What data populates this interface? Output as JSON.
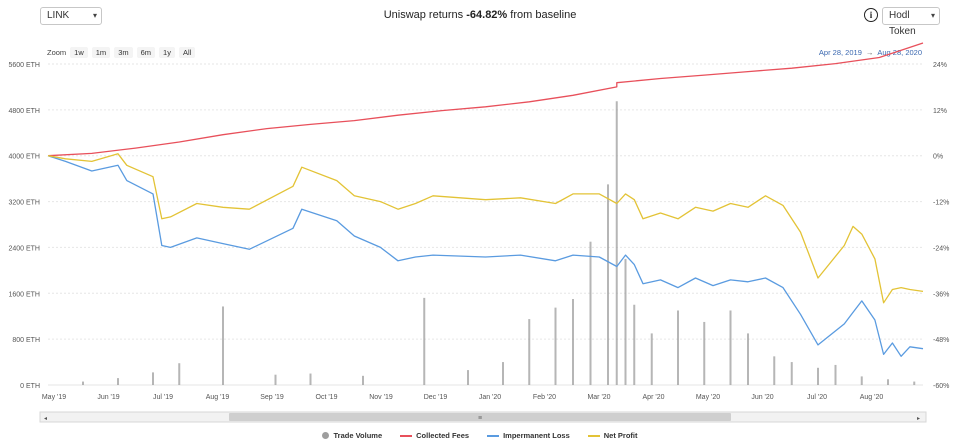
{
  "toolbar": {
    "token_value": "LINK",
    "mode_value": "Hodl Token",
    "headline_prefix": "Uniswap returns ",
    "headline_value": "-64.82%",
    "headline_suffix": " from baseline",
    "info_icon": "info-circle-icon"
  },
  "zoom": {
    "label": "Zoom",
    "buttons": [
      "1w",
      "1m",
      "3m",
      "6m",
      "1y",
      "All"
    ]
  },
  "range": {
    "from": "Apr 28, 2019",
    "arrow": "→",
    "to": "Aug 28, 2020"
  },
  "legend": [
    {
      "label": "Trade Volume",
      "color": "#9e9e9e",
      "symbol": "dot"
    },
    {
      "label": "Collected Fees",
      "color": "#e8505b",
      "symbol": "line"
    },
    {
      "label": "Impermanent Loss",
      "color": "#5a9be0",
      "symbol": "line"
    },
    {
      "label": "Net Profit",
      "color": "#e3c336",
      "symbol": "line"
    }
  ],
  "chart_data": {
    "type": "line",
    "x_ticks": [
      "May '19",
      "Jun '19",
      "Jul '19",
      "Aug '19",
      "Sep '19",
      "Oct '19",
      "Nov '19",
      "Dec '19",
      "Jan '20",
      "Feb '20",
      "Mar '20",
      "Apr '20",
      "May '20",
      "Jun '20",
      "Jul '20",
      "Aug '20"
    ],
    "y_left_ticks": [
      "0 ETH",
      "800 ETH",
      "1600 ETH",
      "2400 ETH",
      "3200 ETH",
      "4000 ETH",
      "4800 ETH",
      "5600 ETH"
    ],
    "y_left_range": [
      0,
      5600
    ],
    "y_right_ticks": [
      "-60%",
      "-48%",
      "-36%",
      "-24%",
      "-12%",
      "0%",
      "12%",
      "24%"
    ],
    "y_right_range": [
      -60,
      24
    ],
    "grid": true,
    "series": [
      {
        "name": "Collected Fees",
        "color": "#e8505b",
        "x": [
          0,
          0.05,
          0.1,
          0.15,
          0.2,
          0.25,
          0.3,
          0.35,
          0.4,
          0.45,
          0.5,
          0.55,
          0.6,
          0.65,
          0.65,
          0.7,
          0.75,
          0.8,
          0.85,
          0.9,
          0.95,
          1.0
        ],
        "pct": [
          0,
          0.6,
          2.0,
          3.6,
          5.5,
          7.1,
          8.2,
          9.2,
          10.6,
          11.8,
          12.8,
          14.1,
          15.8,
          18.0,
          19.1,
          20.2,
          21.1,
          22.0,
          22.9,
          24.1,
          25.7,
          29.5
        ]
      },
      {
        "name": "Impermanent Loss",
        "color": "#5a9be0",
        "x": [
          0,
          0.02,
          0.05,
          0.08,
          0.09,
          0.12,
          0.13,
          0.14,
          0.17,
          0.2,
          0.23,
          0.28,
          0.29,
          0.33,
          0.35,
          0.38,
          0.4,
          0.42,
          0.44,
          0.5,
          0.54,
          0.58,
          0.6,
          0.63,
          0.65,
          0.66,
          0.67,
          0.68,
          0.7,
          0.72,
          0.74,
          0.76,
          0.78,
          0.8,
          0.82,
          0.84,
          0.86,
          0.88,
          0.91,
          0.92,
          0.93,
          0.945,
          0.955,
          0.965,
          0.975,
          0.985,
          1.0
        ],
        "pct": [
          0,
          -1.5,
          -4.0,
          -2.5,
          -6.5,
          -10.0,
          -23.5,
          -24.0,
          -21.5,
          -23.0,
          -24.5,
          -19.0,
          -14.0,
          -17.0,
          -21.0,
          -24.0,
          -27.5,
          -26.5,
          -26.0,
          -26.5,
          -26.0,
          -27.5,
          -26.0,
          -26.5,
          -29.0,
          -26.0,
          -28.5,
          -33.5,
          -32.5,
          -34.5,
          -32.0,
          -34.0,
          -32.5,
          -33.0,
          -32.0,
          -34.5,
          -41.5,
          -49.5,
          -44.0,
          -41.0,
          -38.0,
          -43.0,
          -52.0,
          -49.0,
          -52.5,
          -50.0,
          -50.5
        ]
      },
      {
        "name": "Net Profit",
        "color": "#e3c336",
        "x": [
          0,
          0.02,
          0.05,
          0.08,
          0.09,
          0.12,
          0.13,
          0.14,
          0.17,
          0.2,
          0.23,
          0.28,
          0.29,
          0.33,
          0.35,
          0.38,
          0.4,
          0.42,
          0.44,
          0.5,
          0.54,
          0.58,
          0.6,
          0.63,
          0.65,
          0.66,
          0.67,
          0.68,
          0.7,
          0.72,
          0.74,
          0.76,
          0.78,
          0.8,
          0.82,
          0.84,
          0.86,
          0.88,
          0.91,
          0.92,
          0.93,
          0.945,
          0.955,
          0.965,
          0.975,
          0.985,
          1.0
        ],
        "pct": [
          0,
          -0.8,
          -1.5,
          0.5,
          -2.5,
          -5.5,
          -16.5,
          -16.0,
          -12.5,
          -13.5,
          -14.0,
          -8.0,
          -3.0,
          -6.5,
          -10.5,
          -12.0,
          -14.0,
          -12.5,
          -10.5,
          -11.5,
          -11.0,
          -12.5,
          -10.0,
          -10.0,
          -12.5,
          -10.0,
          -11.5,
          -16.5,
          -15.0,
          -16.5,
          -13.5,
          -14.5,
          -12.5,
          -13.5,
          -10.5,
          -13.0,
          -20.0,
          -32.0,
          -23.5,
          -18.5,
          -20.5,
          -27.0,
          -38.5,
          -35.0,
          -34.5,
          -35.0,
          -35.5
        ]
      },
      {
        "name": "Trade Volume",
        "color": "#9e9e9e",
        "x": [
          0.04,
          0.08,
          0.12,
          0.15,
          0.2,
          0.26,
          0.3,
          0.36,
          0.43,
          0.48,
          0.52,
          0.55,
          0.58,
          0.6,
          0.62,
          0.64,
          0.65,
          0.66,
          0.67,
          0.69,
          0.72,
          0.75,
          0.78,
          0.8,
          0.83,
          0.85,
          0.88,
          0.9,
          0.93,
          0.96,
          0.99
        ],
        "eth": [
          60,
          120,
          220,
          380,
          1370,
          180,
          200,
          160,
          1520,
          260,
          400,
          1150,
          1350,
          1500,
          2500,
          3500,
          4950,
          2200,
          1400,
          900,
          1300,
          1100,
          1300,
          900,
          500,
          400,
          300,
          350,
          150,
          100,
          60
        ]
      }
    ]
  }
}
